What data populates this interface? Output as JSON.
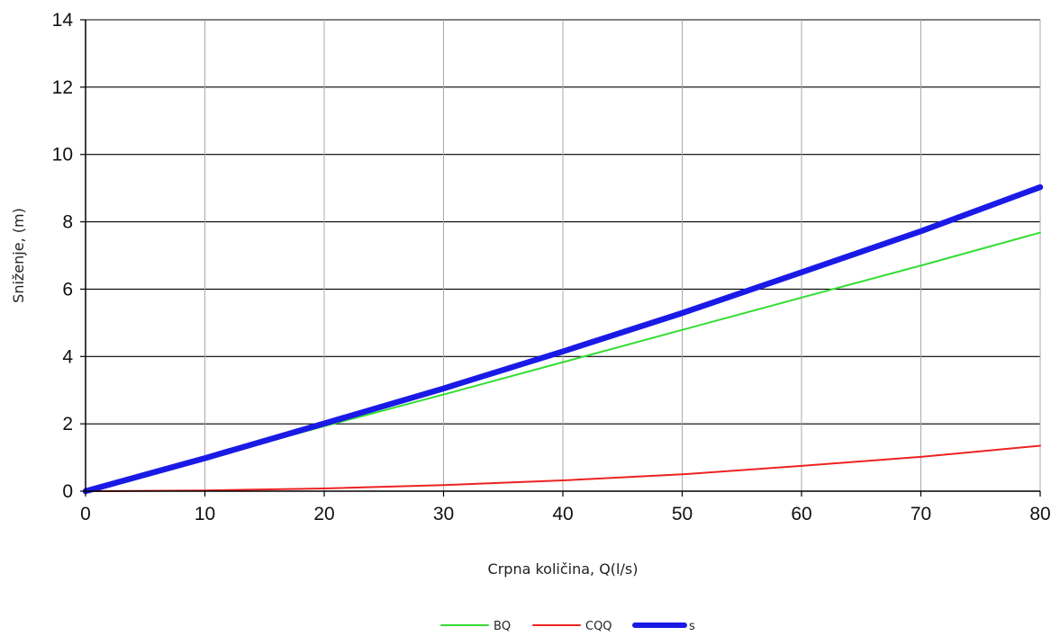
{
  "chart_data": {
    "type": "line",
    "title": "",
    "xlabel": "Crpna količina, Q(l/s)",
    "ylabel": "Sniženje, (m)",
    "xlim": [
      0,
      80
    ],
    "ylim": [
      0,
      14
    ],
    "x_ticks": [
      "0",
      "10",
      "20",
      "30",
      "40",
      "50",
      "60",
      "70",
      "80"
    ],
    "y_ticks": [
      "0",
      "2",
      "4",
      "6",
      "8",
      "10",
      "12",
      "14"
    ],
    "grid": true,
    "legend_position": "bottom-center",
    "x": [
      0,
      10,
      20,
      30,
      40,
      50,
      60,
      70,
      80
    ],
    "series": [
      {
        "name": "BQ",
        "color": "#33dd33",
        "values": [
          0,
          0.96,
          1.93,
          2.87,
          3.83,
          4.79,
          5.75,
          6.7,
          7.68
        ]
      },
      {
        "name": "CQQ",
        "color": "#ee2222",
        "values": [
          0,
          0.02,
          0.08,
          0.18,
          0.32,
          0.5,
          0.75,
          1.02,
          1.35
        ]
      },
      {
        "name": "s",
        "color": "#1a1ae6",
        "values": [
          0,
          0.98,
          2.01,
          3.05,
          4.15,
          5.29,
          6.5,
          7.72,
          9.03
        ]
      }
    ]
  }
}
